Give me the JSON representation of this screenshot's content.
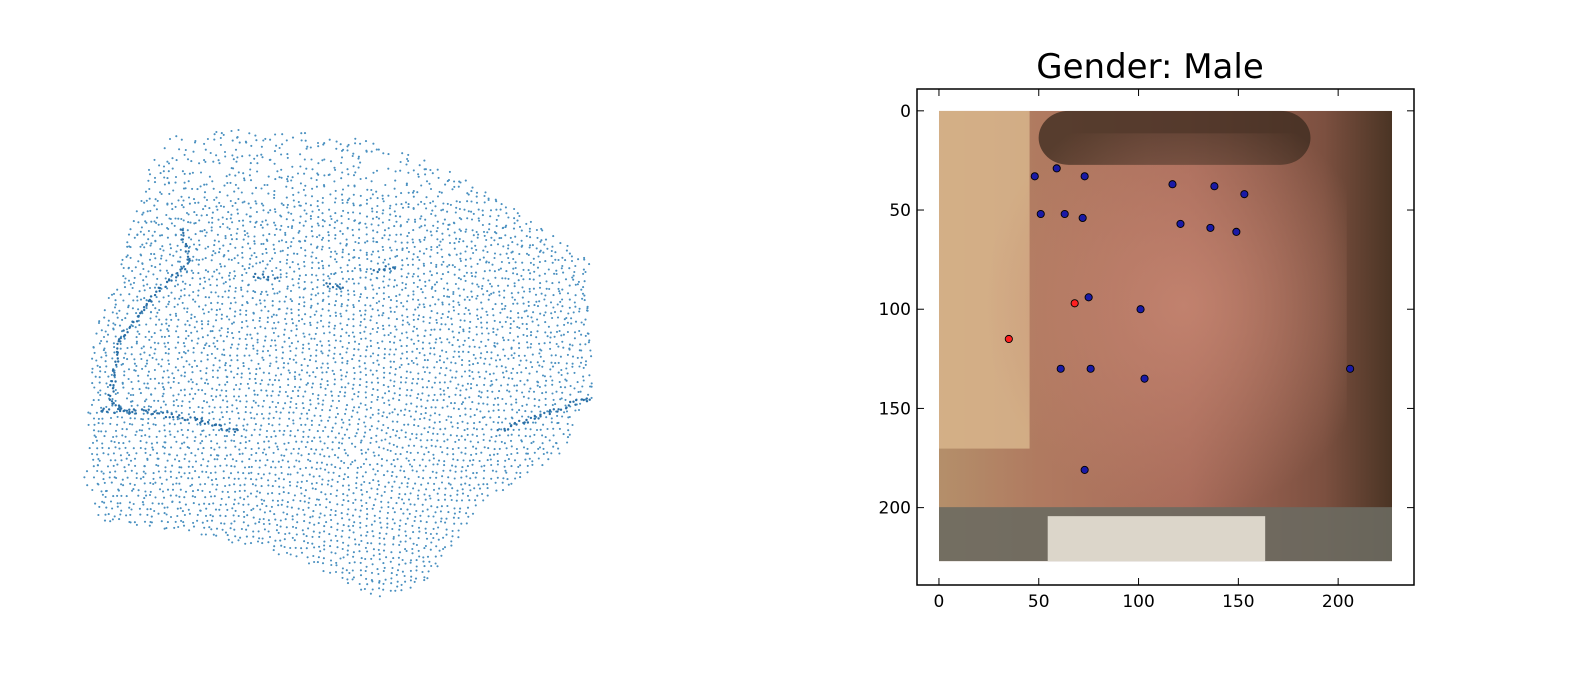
{
  "chart_data": [
    {
      "type": "scatter",
      "title": "",
      "description_role": "3d-point-cloud",
      "point_color": "#4a90c0",
      "axes_visible": false
    },
    {
      "type": "scatter",
      "title": "Gender: Male",
      "xlabel": "",
      "ylabel": "",
      "xlim": [
        -11,
        238
      ],
      "ylim": [
        239,
        -11
      ],
      "y_inverted": true,
      "xticks": [
        0,
        50,
        100,
        150,
        200
      ],
      "yticks": [
        0,
        50,
        100,
        150,
        200
      ],
      "background_image": "face-photo",
      "image_extent": [
        0,
        227,
        227,
        0
      ],
      "series": [
        {
          "name": "",
          "color": "#1a1aa6",
          "x": [
            48,
            59,
            73,
            117,
            138,
            153,
            51,
            63,
            72,
            121,
            136,
            149,
            75,
            101,
            61,
            76,
            103,
            206,
            73
          ],
          "y": [
            33,
            29,
            33,
            37,
            38,
            42,
            52,
            52,
            54,
            57,
            59,
            61,
            94,
            100,
            130,
            130,
            135,
            130,
            181
          ]
        },
        {
          "name": "",
          "color": "#ff2020",
          "x": [
            68,
            35
          ],
          "y": [
            97,
            115
          ]
        }
      ]
    }
  ]
}
